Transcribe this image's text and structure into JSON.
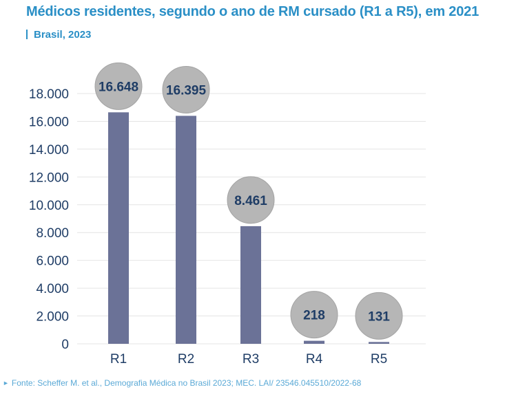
{
  "header": {
    "title": "Médicos residentes, segundo o ano de RM cursado (R1 a R5), em 2021",
    "subtitle": "Brasil, 2023"
  },
  "footer": {
    "source": "Fonte: Scheffer M. et al., Demografia Médica no Brasil 2023; MEC. LAI/ 23546.045510/2022-68"
  },
  "colors": {
    "accent": "#2a8fc6",
    "bar": "#6b7297",
    "bubble": "#b6b6b6",
    "bubble_stroke": "#a3a3a3",
    "axis_text": "#1f3d66",
    "grid": "#e4e4e4"
  },
  "chart_data": {
    "type": "bar",
    "categories": [
      "R1",
      "R2",
      "R3",
      "R4",
      "R5"
    ],
    "values": [
      16648,
      16395,
      8461,
      218,
      131
    ],
    "value_labels": [
      "16.648",
      "16.395",
      "8.461",
      "218",
      "131"
    ],
    "ylim": [
      0,
      18000
    ],
    "y_ticks": [
      0,
      2000,
      4000,
      6000,
      8000,
      10000,
      12000,
      14000,
      16000,
      18000
    ],
    "y_tick_labels": [
      "0",
      "2.000",
      "4.000",
      "6.000",
      "8.000",
      "10.000",
      "12.000",
      "14.000",
      "16.000",
      "18.000"
    ],
    "grid": true,
    "legend": "none"
  }
}
